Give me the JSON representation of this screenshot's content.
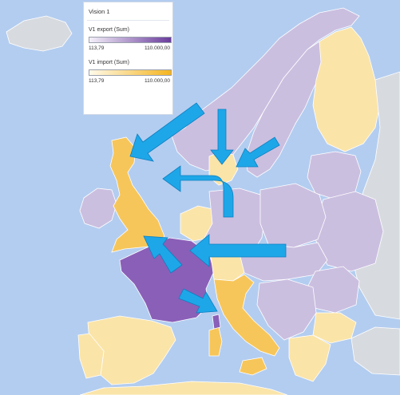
{
  "legend": {
    "title": "Vision 1",
    "export": {
      "label": "V1 export (Sum)",
      "min": "113,79",
      "max": "110.000,00",
      "color_low": "#f4f0f9",
      "color_high": "#6a3c9c"
    },
    "import": {
      "label": "V1 import (Sum)",
      "min": "113,79",
      "max": "110.000,00",
      "color_low": "#fffaea",
      "color_high": "#f5b51f"
    }
  },
  "colors": {
    "sea": "#b3cdf0",
    "land_neutral": "#d7dbe0",
    "export_strong": "#8a5fb8",
    "export_light": "#cbbfe0",
    "import_pale": "#fae4a8",
    "import_strong": "#f7c65a",
    "arrow": "#1ea7e8"
  },
  "regions": [
    {
      "name": "Iceland",
      "shade": "land_neutral"
    },
    {
      "name": "Norway",
      "shade": "export_light"
    },
    {
      "name": "Sweden",
      "shade": "export_light"
    },
    {
      "name": "Finland",
      "shade": "import_pale"
    },
    {
      "name": "United Kingdom",
      "shade": "import_strong"
    },
    {
      "name": "Ireland",
      "shade": "export_light"
    },
    {
      "name": "France",
      "shade": "export_strong"
    },
    {
      "name": "Spain",
      "shade": "import_pale"
    },
    {
      "name": "Portugal",
      "shade": "import_pale"
    },
    {
      "name": "Germany",
      "shade": "export_light"
    },
    {
      "name": "Poland",
      "shade": "export_light"
    },
    {
      "name": "Italy",
      "shade": "import_strong"
    },
    {
      "name": "Romania",
      "shade": "export_light"
    },
    {
      "name": "Turkey",
      "shade": "land_neutral"
    }
  ],
  "flows": [
    {
      "from": "Norway",
      "to": "United Kingdom"
    },
    {
      "from": "Sweden",
      "to": "Denmark"
    },
    {
      "from": "Sweden (east)",
      "to": "Denmark"
    },
    {
      "from": "Denmark",
      "to": "United Kingdom"
    },
    {
      "from": "Germany",
      "to": "France"
    },
    {
      "from": "France",
      "to": "United Kingdom"
    },
    {
      "from": "France",
      "to": "Italy"
    }
  ]
}
